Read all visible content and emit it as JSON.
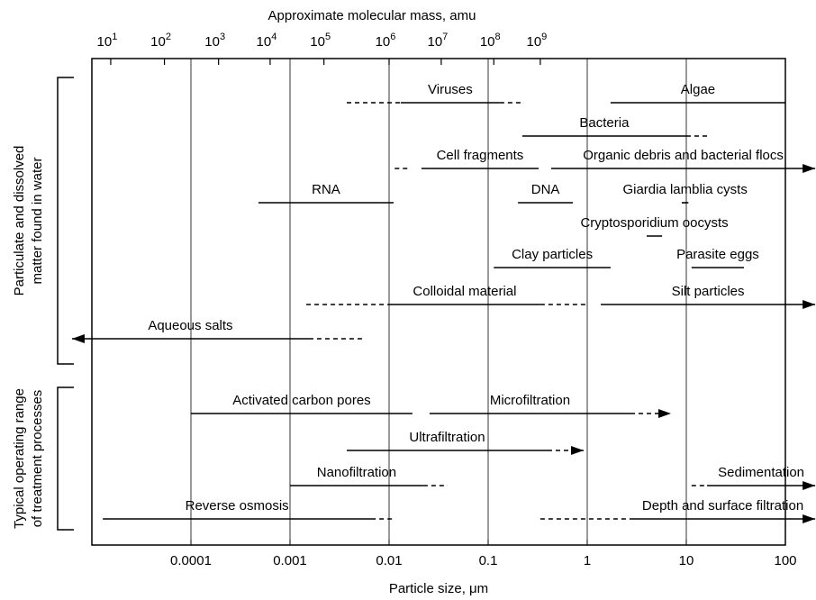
{
  "chart_data": {
    "type": "range",
    "x_scale": "log",
    "top_axis_label": "Approximate molecular mass, amu",
    "xlabel": "Particle size, μm",
    "xlim": [
      1e-05,
      100
    ],
    "xticks": [
      0.0001,
      0.001,
      0.01,
      0.1,
      1,
      10,
      100
    ],
    "grid": true,
    "mass_ticks": [
      {
        "size": 1.55e-05,
        "base": "10",
        "exponent": 1
      },
      {
        "size": 5.4e-05,
        "base": "10",
        "exponent": 2
      },
      {
        "size": 0.00019,
        "base": "10",
        "exponent": 3
      },
      {
        "size": 0.00063,
        "base": "10",
        "exponent": 4
      },
      {
        "size": 0.0022,
        "base": "10",
        "exponent": 5
      },
      {
        "size": 0.01,
        "base": "10",
        "exponent": 6
      },
      {
        "size": 0.0336,
        "base": "10",
        "exponent": 7
      },
      {
        "size": 0.114,
        "base": "10",
        "exponent": 8
      },
      {
        "size": 0.336,
        "base": "10",
        "exponent": 9
      }
    ],
    "groups": [
      {
        "label": [
          "Particulate and dissolved",
          "matter found in water"
        ],
        "rows": [
          [
            {
              "label": "Viruses",
              "segments": [
                {
                  "from": 0.00374,
                  "to": 0.0131,
                  "style": "dashed"
                },
                {
                  "from": 0.0131,
                  "to": 0.131,
                  "style": "solid"
                },
                {
                  "from": 0.131,
                  "to": 0.231,
                  "style": "dashed"
                }
              ]
            },
            {
              "label": "Algae",
              "segments": [
                {
                  "from": 1.72,
                  "to": 100,
                  "style": "solid"
                }
              ]
            }
          ],
          [
            {
              "label": "Bacteria",
              "segments": [
                {
                  "from": 0.221,
                  "to": 10,
                  "style": "solid"
                },
                {
                  "from": 10,
                  "to": 17.2,
                  "style": "dashed"
                }
              ]
            }
          ],
          [
            {
              "label": "Cell fragments",
              "segments": [
                {
                  "from": 0.0114,
                  "to": 0.0155,
                  "style": "dashed"
                },
                {
                  "from": 0.0212,
                  "to": 0.323,
                  "style": "solid"
                }
              ]
            },
            {
              "label": "Organic debris and bacterial flocs",
              "arrow": "right",
              "segments": [
                {
                  "from": 0.433,
                  "to": 200,
                  "style": "solid"
                }
              ]
            }
          ],
          [
            {
              "label": "RNA",
              "segments": [
                {
                  "from": 0.00048,
                  "to": 0.0111,
                  "style": "solid"
                }
              ]
            },
            {
              "label": "DNA",
              "segments": [
                {
                  "from": 0.2,
                  "to": 0.716,
                  "style": "solid"
                }
              ]
            },
            {
              "label": "Giardia lamblia cysts",
              "segments": [
                {
                  "from": 9,
                  "to": 10.5,
                  "style": "solid"
                }
              ]
            }
          ],
          [
            {
              "label": "Cryptosporidium oocysts",
              "segments": [
                {
                  "from": 3.98,
                  "to": 5.7,
                  "style": "solid"
                }
              ]
            }
          ],
          [
            {
              "label": "Clay particles",
              "segments": [
                {
                  "from": 0.114,
                  "to": 1.72,
                  "style": "solid"
                }
              ]
            },
            {
              "label": "Parasite eggs",
              "segments": [
                {
                  "from": 11.3,
                  "to": 38.2,
                  "style": "solid"
                }
              ]
            }
          ],
          [
            {
              "label": "Colloidal material",
              "segments": [
                {
                  "from": 0.00146,
                  "to": 0.01,
                  "style": "dashed"
                },
                {
                  "from": 0.01,
                  "to": 0.336,
                  "style": "solid"
                },
                {
                  "from": 0.336,
                  "to": 0.96,
                  "style": "dashed"
                }
              ]
            },
            {
              "label": "Silt particles",
              "arrow": "right",
              "segments": [
                {
                  "from": 1.37,
                  "to": 200,
                  "style": "solid"
                }
              ]
            }
          ],
          [
            {
              "label": "Aqueous salts",
              "arrow": "left",
              "segments": [
                {
                  "from": 6.3e-06,
                  "to": 0.00155,
                  "style": "solid"
                },
                {
                  "from": 0.00155,
                  "to": 0.0057,
                  "style": "dashed"
                }
              ]
            }
          ]
        ]
      },
      {
        "label": [
          "Typical operating range",
          "of treatment processes"
        ],
        "rows": [
          [
            {
              "label": "Activated carbon pores",
              "segments": [
                {
                  "from": 0.0001,
                  "to": 0.0172,
                  "style": "solid"
                }
              ]
            },
            {
              "label": "Microfiltration",
              "arrow": "right",
              "segments": [
                {
                  "from": 0.0256,
                  "to": 2.73,
                  "style": "solid"
                },
                {
                  "from": 2.73,
                  "to": 7.0,
                  "style": "dashed"
                }
              ]
            }
          ],
          [
            {
              "label": "Ultrafiltration",
              "arrow": "right",
              "segments": [
                {
                  "from": 0.00374,
                  "to": 0.398,
                  "style": "solid"
                },
                {
                  "from": 0.398,
                  "to": 0.92,
                  "style": "dashed"
                }
              ]
            }
          ],
          [
            {
              "label": "Nanofiltration",
              "segments": [
                {
                  "from": 0.001,
                  "to": 0.0221,
                  "style": "solid"
                },
                {
                  "from": 0.0221,
                  "to": 0.039,
                  "style": "dashed"
                }
              ]
            },
            {
              "label": "Sedimentation",
              "arrow": "right",
              "segments": [
                {
                  "from": 11.3,
                  "to": 16.2,
                  "style": "dashed"
                },
                {
                  "from": 16.2,
                  "to": 200,
                  "style": "solid"
                }
              ]
            }
          ],
          [
            {
              "label": "Reverse osmosis",
              "segments": [
                {
                  "from": 1.29e-05,
                  "to": 0.0066,
                  "style": "solid"
                },
                {
                  "from": 0.0066,
                  "to": 0.0114,
                  "style": "dashed"
                }
              ]
            },
            {
              "label": "Depth and surface filtration",
              "arrow": "right",
              "segments": [
                {
                  "from": 0.336,
                  "to": 2.73,
                  "style": "dashed"
                },
                {
                  "from": 2.73,
                  "to": 200,
                  "style": "solid"
                }
              ]
            }
          ]
        ]
      }
    ]
  }
}
